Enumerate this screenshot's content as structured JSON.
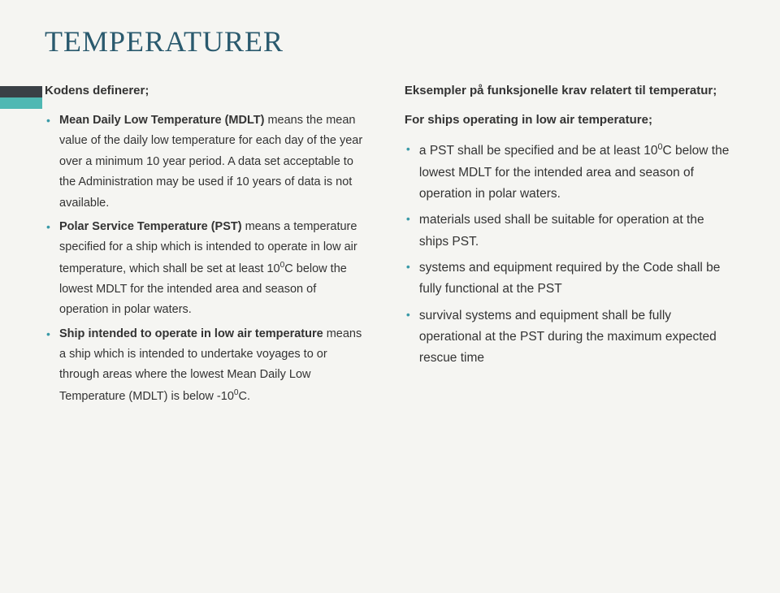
{
  "title": "TEMPERATURER",
  "left": {
    "heading": "Kodens definerer;",
    "items": [
      {
        "bold": "Mean Daily Low Temperature (MDLT)",
        "rest": " means the mean value of the daily low temperature for each day of the year over a minimum 10 year period. A data set acceptable to the Administration may be used if 10 years of data is not available."
      },
      {
        "bold": "Polar Service Temperature (PST)",
        "rest1": " means a temperature specified for a ship which is intended to operate in low air temperature, which shall be set at least 10",
        "sup": "0",
        "rest2": "C below the lowest MDLT for the intended area and season of operation in polar waters."
      },
      {
        "bold": "Ship intended to operate in low air temperature",
        "rest1": " means a ship which is intended to undertake voyages to or through areas where the lowest Mean Daily Low Temperature (MDLT) is below -10",
        "sup": "0",
        "rest2": "C."
      }
    ]
  },
  "right": {
    "heading1": "Eksempler på funksjonelle krav relatert til temperatur;",
    "heading2": "For ships operating in low air temperature;",
    "items": [
      {
        "pre": "a PST shall be specified and be at least 10",
        "sup": "0",
        "post": "C below the lowest MDLT for the intended area and season of operation in polar waters."
      },
      {
        "text": "materials used shall be suitable for operation at the ships PST."
      },
      {
        "text": "systems and equipment required by the Code shall be fully functional at the PST"
      },
      {
        "text": "survival systems and equipment shall be fully operational at the PST during the maximum expected rescue time"
      }
    ]
  }
}
